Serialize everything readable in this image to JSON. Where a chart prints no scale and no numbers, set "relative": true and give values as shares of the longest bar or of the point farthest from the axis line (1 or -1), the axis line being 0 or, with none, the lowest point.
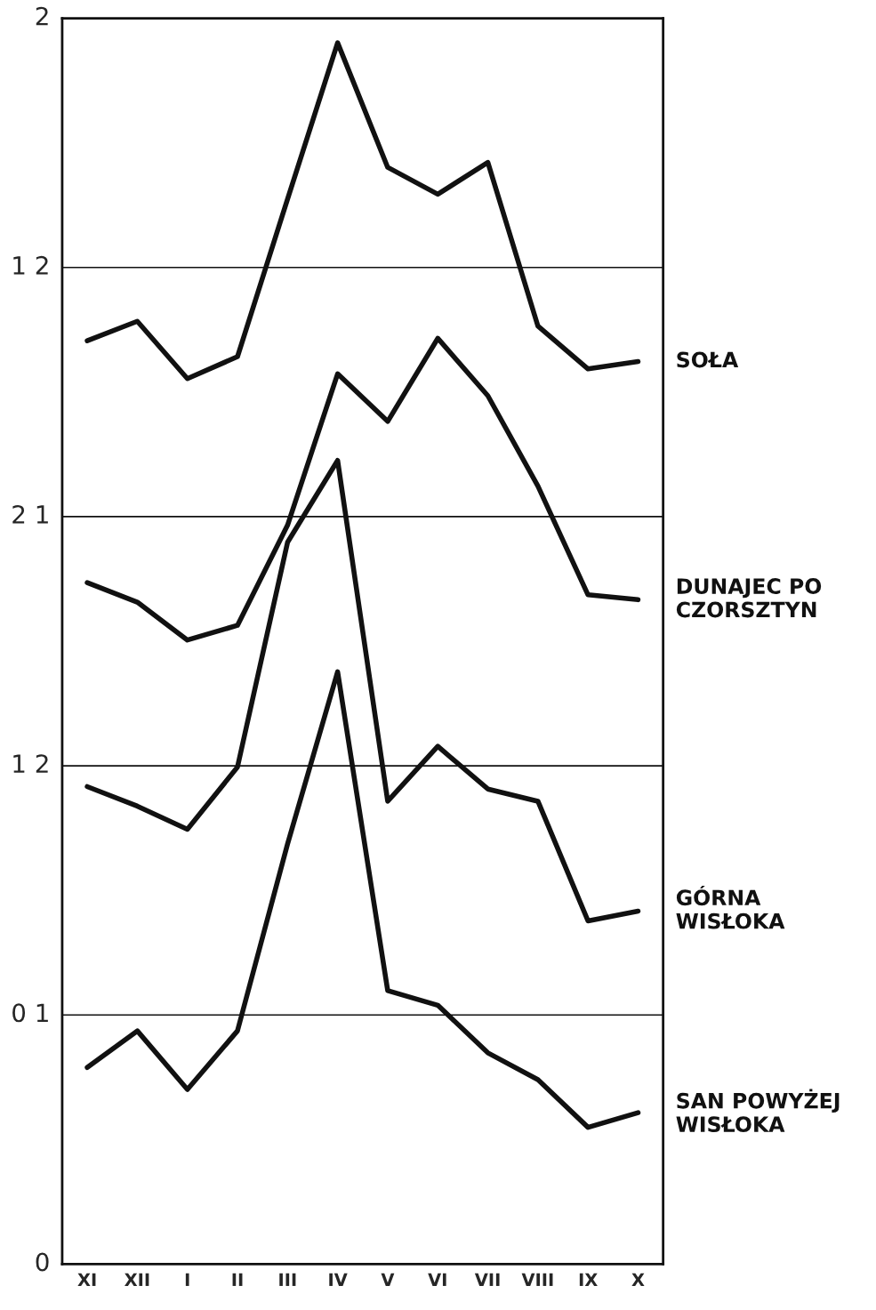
{
  "chart_data": {
    "type": "line",
    "relative": true,
    "categories": [
      "XI",
      "XII",
      "I",
      "II",
      "III",
      "IV",
      "V",
      "VI",
      "VII",
      "VIII",
      "IX",
      "X"
    ],
    "annotations": [
      "0",
      "0 1",
      "1 2",
      "2 1",
      "1 2",
      "2"
    ],
    "grid": "y",
    "marker": "none",
    "line_style": "solid",
    "series": [
      {
        "name": "SOŁA",
        "color": "#111111",
        "values": [
          0.756,
          0.772,
          0.725,
          0.743,
          0.872,
          1,
          0.898,
          0.876,
          0.902,
          0.768,
          0.733,
          0.739
        ]
      },
      {
        "name": "DUNAJEC PO\nCZORSZTYN",
        "color": "#111111",
        "values": [
          0.558,
          0.542,
          0.511,
          0.523,
          0.605,
          0.729,
          0.69,
          0.758,
          0.711,
          0.637,
          0.548,
          0.544
        ]
      },
      {
        "name": "GÓRNA\nWISŁOKA",
        "color": "#111111",
        "values": [
          0.391,
          0.375,
          0.356,
          0.407,
          0.591,
          0.658,
          0.379,
          0.424,
          0.389,
          0.379,
          0.281,
          0.289
        ]
      },
      {
        "name": "SAN POWYŻEJ\nWISŁOKA",
        "color": "#111111",
        "values": [
          0.161,
          0.191,
          0.143,
          0.191,
          0.344,
          0.485,
          0.224,
          0.212,
          0.173,
          0.151,
          0.112,
          0.124
        ]
      }
    ]
  }
}
